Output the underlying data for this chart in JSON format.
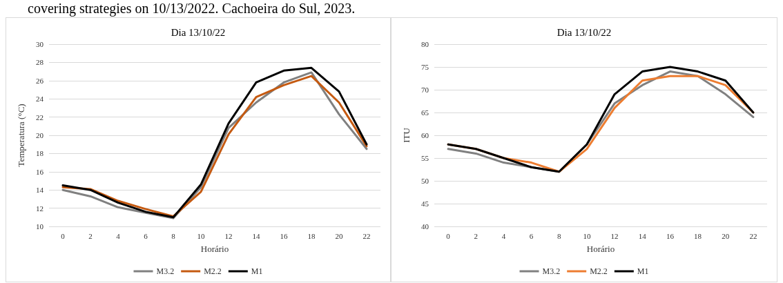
{
  "chart_data": [
    {
      "type": "line",
      "title": "Dia 13/10/22",
      "xlabel": "Horário",
      "ylabel": "Temperatura (°C)",
      "annotations": [
        "covering strategies on 10/13/2022. Cachoeira do Sul, 2023."
      ],
      "categories": [
        "0",
        "2",
        "4",
        "6",
        "8",
        "10",
        "12",
        "14",
        "16",
        "18",
        "20",
        "22"
      ],
      "series": [
        {
          "name": "M3.2",
          "color": "#808080",
          "values": [
            14.0,
            13.3,
            12.1,
            11.5,
            10.9,
            14.3,
            20.8,
            23.6,
            25.8,
            26.9,
            22.3,
            18.5
          ]
        },
        {
          "name": "M2.2",
          "color": "#c55a11",
          "values": [
            14.3,
            14.1,
            12.8,
            11.9,
            11.1,
            13.8,
            20.1,
            24.2,
            25.5,
            26.5,
            23.6,
            18.8
          ]
        },
        {
          "name": "M1",
          "color": "#000000",
          "values": [
            14.5,
            14.0,
            12.6,
            11.6,
            11.0,
            14.6,
            21.3,
            25.8,
            27.1,
            27.4,
            24.8,
            19.0
          ]
        }
      ],
      "ylim": [
        10,
        30
      ],
      "yticks": [
        10,
        12,
        14,
        16,
        18,
        20,
        22,
        24,
        26,
        28,
        30
      ],
      "grid": "y",
      "legend": "bottom",
      "marker": "none",
      "line_style": "solid"
    },
    {
      "type": "line",
      "title": "Dia 13/10/22",
      "xlabel": "Horário",
      "ylabel": "ITU",
      "categories": [
        "0",
        "2",
        "4",
        "6",
        "8",
        "10",
        "12",
        "14",
        "16",
        "18",
        "20",
        "22"
      ],
      "series": [
        {
          "name": "M3.2",
          "color": "#808080",
          "values": [
            57,
            56,
            54,
            53,
            52,
            58,
            67,
            71,
            74,
            73,
            69,
            64
          ]
        },
        {
          "name": "M2.2",
          "color": "#ed7d31",
          "values": [
            58,
            57,
            55,
            54,
            52,
            57,
            66,
            72,
            73,
            73,
            71,
            65
          ]
        },
        {
          "name": "M1",
          "color": "#000000",
          "values": [
            58,
            57,
            55,
            53,
            52,
            58,
            69,
            74,
            75,
            74,
            72,
            65
          ]
        }
      ],
      "ylim": [
        40,
        80
      ],
      "yticks": [
        40,
        45,
        50,
        55,
        60,
        65,
        70,
        75,
        80
      ],
      "grid": "y",
      "legend": "bottom",
      "marker": "none",
      "line_style": "solid"
    }
  ]
}
